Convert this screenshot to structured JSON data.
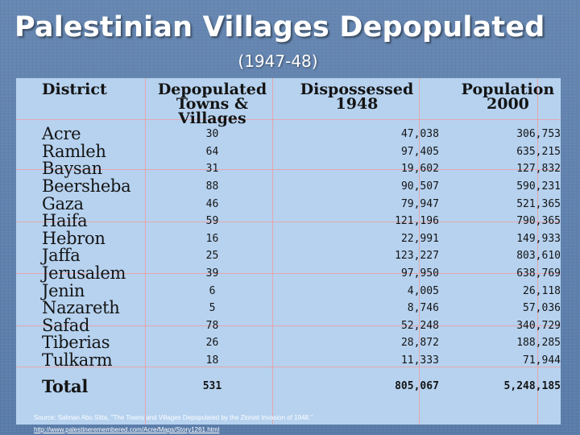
{
  "slide": {
    "title": "Palestinian Villages Depopulated",
    "subtitle": "(1947-48)"
  },
  "table": {
    "headers": {
      "district": "District",
      "towns": [
        "Depopulated",
        "Towns & Villages"
      ],
      "dispossessed": [
        "Dispossessed",
        "1948"
      ],
      "population": [
        "Population",
        "2000"
      ]
    },
    "rows": [
      {
        "district": "Acre",
        "towns": "30",
        "dispossessed": "47,038",
        "population": "306,753"
      },
      {
        "district": "Ramleh",
        "towns": "64",
        "dispossessed": "97,405",
        "population": "635,215"
      },
      {
        "district": "Baysan",
        "towns": "31",
        "dispossessed": "19,602",
        "population": "127,832"
      },
      {
        "district": "Beersheba",
        "towns": "88",
        "dispossessed": "90,507",
        "population": "590,231"
      },
      {
        "district": "Gaza",
        "towns": "46",
        "dispossessed": "79,947",
        "population": "521,365"
      },
      {
        "district": "Haifa",
        "towns": "59",
        "dispossessed": "121,196",
        "population": "790,365"
      },
      {
        "district": "Hebron",
        "towns": "16",
        "dispossessed": "22,991",
        "population": "149,933"
      },
      {
        "district": "Jaffa",
        "towns": "25",
        "dispossessed": "123,227",
        "population": "803,610"
      },
      {
        "district": "Jerusalem",
        "towns": "39",
        "dispossessed": "97,950",
        "population": "638,769"
      },
      {
        "district": "Jenin",
        "towns": "6",
        "dispossessed": "4,005",
        "population": "26,118"
      },
      {
        "district": "Nazareth",
        "towns": "5",
        "dispossessed": "8,746",
        "population": "57,036"
      },
      {
        "district": "Safad",
        "towns": "78",
        "dispossessed": "52,248",
        "population": "340,729"
      },
      {
        "district": "Tiberias",
        "towns": "26",
        "dispossessed": "28,872",
        "population": "188,285"
      },
      {
        "district": "Tulkarm",
        "towns": "18",
        "dispossessed": "11,333",
        "population": "71,944"
      }
    ],
    "total": {
      "label": "Total",
      "towns": "531",
      "dispossessed": "805,067",
      "population": "5,248,185"
    }
  },
  "source": {
    "text": "Source:  Salman Abu Sitta, \"The Towns and Villages Depopulated by the Zionist Invasion of 1948.\"",
    "url": "http://www.palestineremembered.com/Acre/Maps/Story1261.html"
  },
  "colors": {
    "background": "#5f81ad",
    "table_background": "#b6d2ef",
    "grid_line": "#e3a6ad"
  }
}
